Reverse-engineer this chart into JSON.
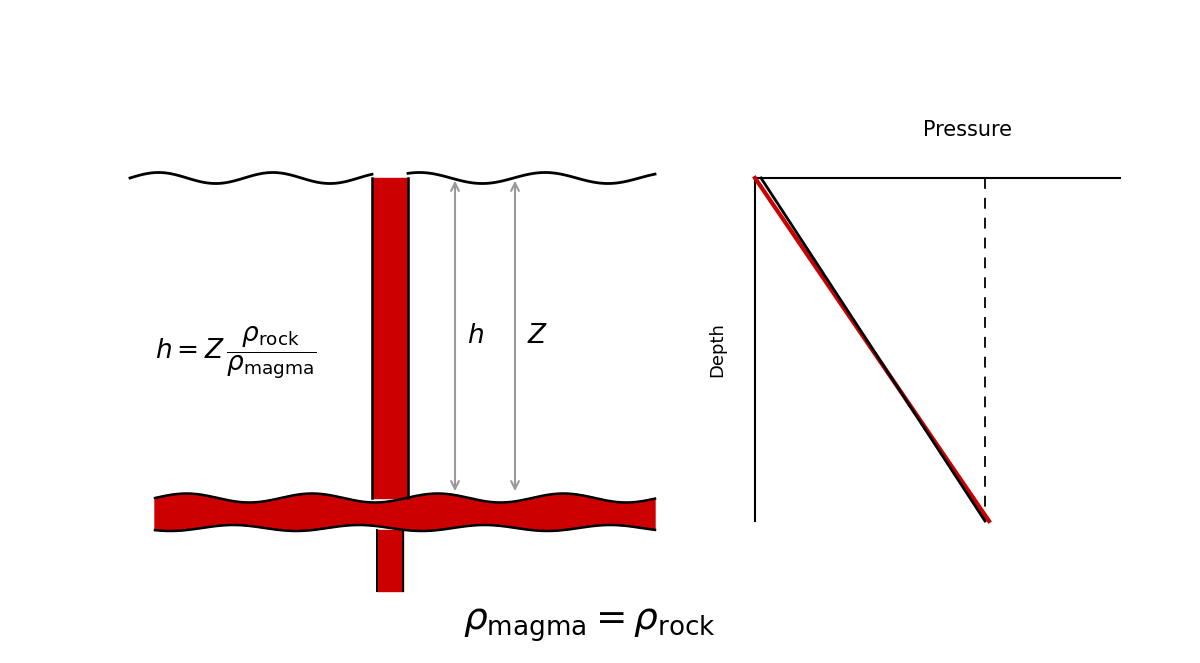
{
  "bg_color": "#ffffff",
  "red_color": "#cc0000",
  "black_color": "#000000",
  "gray_color": "#999999",
  "title": "Pressure",
  "depth_label": "Depth",
  "h_label": "h",
  "Z_label": "Z",
  "figsize": [
    12.0,
    6.63
  ],
  "dpi": 100
}
